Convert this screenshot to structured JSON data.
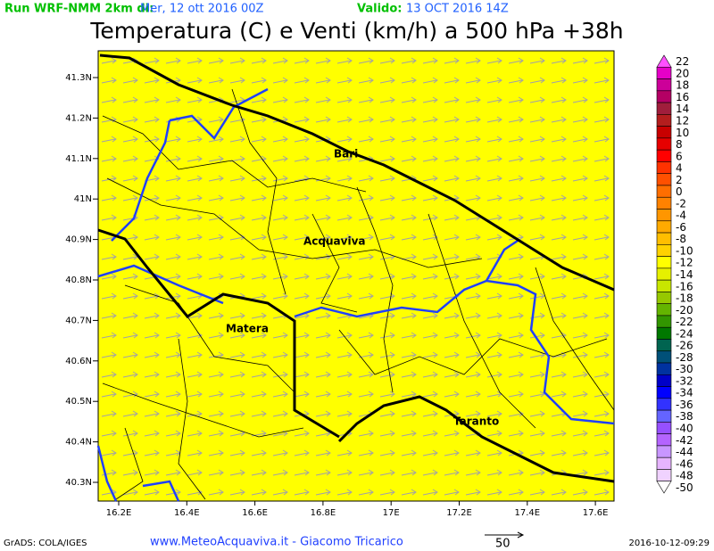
{
  "header": {
    "run_label": "Run WRF-NMM 2km di:",
    "run_date": "Mer, 12 ott 2016 00Z",
    "valid_label": "Valido:",
    "valid_date": "13 OCT 2016 14Z",
    "title": "Temperatura (C) e Venti (km/h) a 500 hPa +38h"
  },
  "map": {
    "lat_labels": [
      "41.3N",
      "41.2N",
      "41.1N",
      "41N",
      "40.9N",
      "40.8N",
      "40.7N",
      "40.6N",
      "40.5N",
      "40.4N",
      "40.3N"
    ],
    "lon_labels": [
      "16.2E",
      "16.4E",
      "16.6E",
      "16.8E",
      "17E",
      "17.2E",
      "17.4E",
      "17.6E"
    ],
    "places": [
      "Bari",
      "Acquaviva",
      "Matera",
      "Taranto"
    ]
  },
  "legend": {
    "levels": [
      {
        "value": 22,
        "color": "#ff50ff"
      },
      {
        "value": 20,
        "color": "#e600c8"
      },
      {
        "value": 18,
        "color": "#cc0099"
      },
      {
        "value": 16,
        "color": "#b40064"
      },
      {
        "value": 14,
        "color": "#a01e3c"
      },
      {
        "value": 12,
        "color": "#b41e1e"
      },
      {
        "value": 10,
        "color": "#c80000"
      },
      {
        "value": 8,
        "color": "#e60000"
      },
      {
        "value": 6,
        "color": "#ff0000"
      },
      {
        "value": 4,
        "color": "#ff3200"
      },
      {
        "value": 2,
        "color": "#ff5000"
      },
      {
        "value": 0,
        "color": "#ff6e00"
      },
      {
        "value": -2,
        "color": "#ff8200"
      },
      {
        "value": -4,
        "color": "#ff9600"
      },
      {
        "value": -6,
        "color": "#ffaa00"
      },
      {
        "value": -8,
        "color": "#ffbe00"
      },
      {
        "value": -10,
        "color": "#ffd200"
      },
      {
        "value": -12,
        "color": "#ffff00"
      },
      {
        "value": -14,
        "color": "#e6f000"
      },
      {
        "value": -16,
        "color": "#c8e600"
      },
      {
        "value": -18,
        "color": "#96c800"
      },
      {
        "value": -20,
        "color": "#64b400"
      },
      {
        "value": -22,
        "color": "#329600"
      },
      {
        "value": -24,
        "color": "#007800"
      },
      {
        "value": -26,
        "color": "#006450"
      },
      {
        "value": -28,
        "color": "#005078"
      },
      {
        "value": -30,
        "color": "#0032a0"
      },
      {
        "value": -32,
        "color": "#0000c8"
      },
      {
        "value": -34,
        "color": "#0000ff"
      },
      {
        "value": -36,
        "color": "#3232ff"
      },
      {
        "value": -38,
        "color": "#6464ff"
      },
      {
        "value": -40,
        "color": "#9650ff"
      },
      {
        "value": -42,
        "color": "#b464ff"
      },
      {
        "value": -44,
        "color": "#c896ff"
      },
      {
        "value": -46,
        "color": "#e6b4ff"
      },
      {
        "value": -48,
        "color": "#f0d2ff"
      },
      {
        "value": -50,
        "color": "#ffffff"
      }
    ]
  },
  "footer": {
    "credit": "GrADS: COLA/IGES",
    "site": "www.MeteoAcquaviva.it - Giacomo Tricarico",
    "wind_scale": "50",
    "timestamp": "2016-10-12-09:29"
  }
}
